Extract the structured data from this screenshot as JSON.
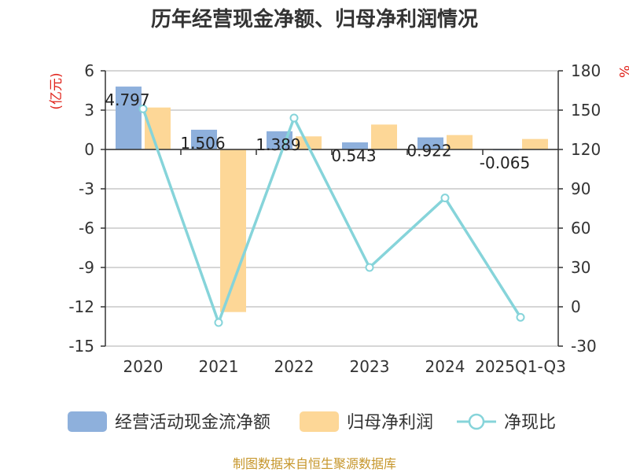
{
  "header": {
    "title": "历年经营现金净额、归母净利润情况"
  },
  "footer": {
    "source": "制图数据来自恒生聚源数据库"
  },
  "colors": {
    "cash_flow": "#8eb0dc",
    "profit": "#fdd797",
    "ratio": "#86d4da",
    "unit": "#e0231b",
    "grid": "#c8c8c8",
    "axis": "#333333"
  },
  "chart_data": {
    "type": "bar",
    "title": "历年经营现金净额、归母净利润情况",
    "categories": [
      "2020",
      "2021",
      "2022",
      "2023",
      "2024",
      "2025Q1-Q3"
    ],
    "series": [
      {
        "name": "经营活动现金流净额",
        "axis": "left",
        "type": "bar",
        "values": [
          4.797,
          1.506,
          1.389,
          0.543,
          0.922,
          -0.065
        ],
        "labels": [
          "4.797",
          "1.506",
          "1.389",
          "0.543",
          "0.922",
          "-0.065"
        ]
      },
      {
        "name": "归母净利润",
        "axis": "left",
        "type": "bar",
        "values": [
          3.2,
          -12.4,
          1.0,
          1.9,
          1.1,
          0.8
        ]
      },
      {
        "name": "净现比",
        "axis": "right",
        "type": "line",
        "values": [
          151,
          -12,
          144,
          30,
          83,
          -8
        ]
      }
    ],
    "y_left": {
      "unit": "(亿元)",
      "ylim": [
        -15,
        6
      ],
      "ticks": [
        6,
        3,
        0,
        -3,
        -6,
        -9,
        -12,
        -15
      ]
    },
    "y_right": {
      "unit": "%",
      "ylim": [
        -30,
        180
      ],
      "ticks": [
        180,
        150,
        120,
        90,
        60,
        30,
        0,
        -30
      ]
    },
    "grid": true,
    "legend_position": "bottom"
  }
}
